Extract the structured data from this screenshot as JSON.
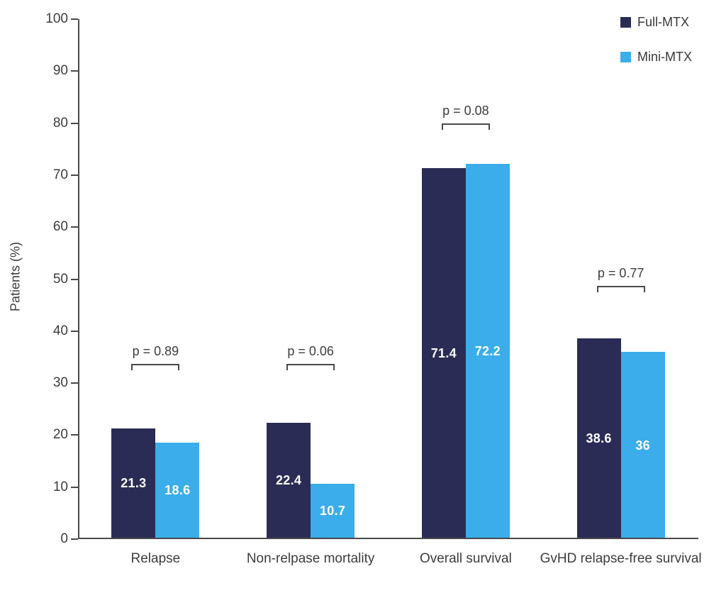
{
  "chart_data": {
    "type": "bar",
    "title": "",
    "xlabel": "",
    "ylabel": "Patients (%)",
    "ylim": [
      0,
      100
    ],
    "yticks": [
      0,
      10,
      20,
      30,
      40,
      50,
      60,
      70,
      80,
      90,
      100
    ],
    "grid": false,
    "legend_position": "top-right",
    "categories": [
      "Relapse",
      "Non-relpase mortality",
      "Overall survival",
      "GvHD relapse-free survival"
    ],
    "series": [
      {
        "name": "Full-MTX",
        "color": "#2b2c55",
        "values": [
          21.3,
          22.4,
          71.4,
          38.6
        ]
      },
      {
        "name": "Mini-MTX",
        "color": "#3badea",
        "values": [
          18.6,
          10.7,
          72.2,
          36
        ]
      }
    ],
    "p_values": [
      "p = 0.89",
      "p = 0.06",
      "p = 0.08",
      "p = 0.77"
    ],
    "p_bracket_levels": [
      33.7,
      33.7,
      80.0,
      48.7
    ],
    "value_label_color": "#ffffff",
    "axis_color": "#4a4a4a",
    "text_color": "#3d3d3d"
  }
}
